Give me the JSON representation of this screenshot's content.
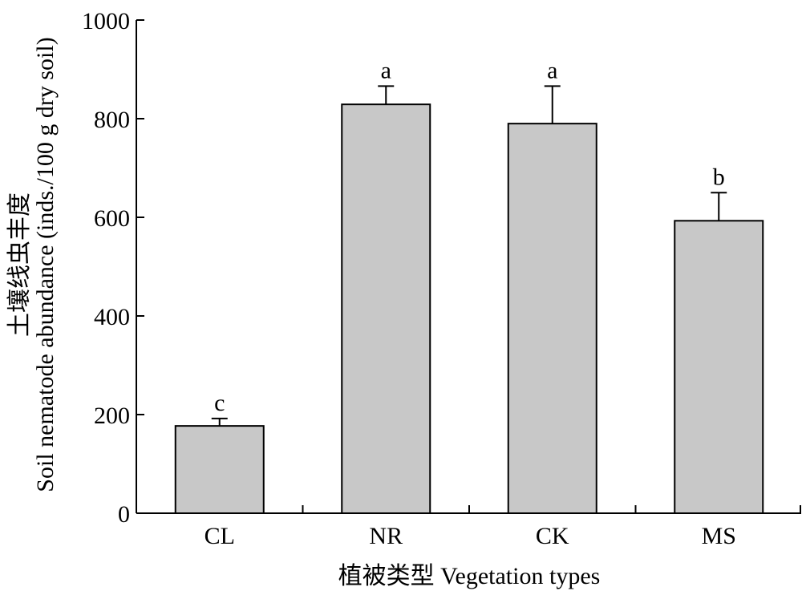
{
  "chart_data": {
    "type": "bar",
    "categories": [
      "CL",
      "NR",
      "CK",
      "MS"
    ],
    "values": [
      177,
      829,
      790,
      593
    ],
    "error_bars": [
      15,
      37,
      76,
      57
    ],
    "significance_letters": [
      "c",
      "a",
      "a",
      "b"
    ],
    "xlabel": "植被类型 Vegetation types",
    "ylabel_line1": "土壤线虫丰度",
    "ylabel_line2": "Soil nematode abundance (inds./100 g dry soil)",
    "ylim": [
      0,
      1000
    ],
    "yticks": [
      0,
      200,
      400,
      600,
      800,
      1000
    ],
    "bar_color": "#c8c8c8",
    "grid": false
  }
}
